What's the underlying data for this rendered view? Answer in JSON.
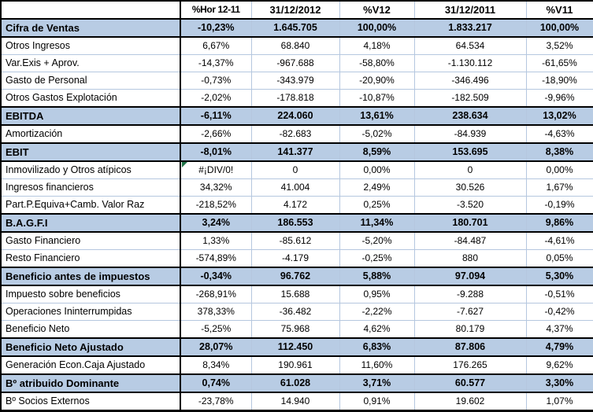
{
  "colors": {
    "highlight_row_bg": "#B8CCE4",
    "grid_line": "#B5C7DF",
    "section_border": "#000000",
    "error_indicator": "#1E7145",
    "text": "#000000"
  },
  "table": {
    "columns": [
      {
        "key": "label",
        "header": ""
      },
      {
        "key": "hor",
        "header": "%Hor 12-11"
      },
      {
        "key": "v2012",
        "header": "31/12/2012"
      },
      {
        "key": "p12",
        "header": "%V12"
      },
      {
        "key": "v2011",
        "header": "31/12/2011"
      },
      {
        "key": "p11",
        "header": "%V11"
      }
    ],
    "rows": [
      {
        "label": "Cifra de Ventas",
        "hor": "-10,23%",
        "v2012": "1.645.705",
        "p12": "100,00%",
        "v2011": "1.833.217",
        "p11": "100,00%",
        "emphasis": true
      },
      {
        "label": "Otros Ingresos",
        "hor": "6,67%",
        "v2012": "68.840",
        "p12": "4,18%",
        "v2011": "64.534",
        "p11": "3,52%"
      },
      {
        "label": "Var.Exis + Aprov.",
        "hor": "-14,37%",
        "v2012": "-967.688",
        "p12": "-58,80%",
        "v2011": "-1.130.112",
        "p11": "-61,65%"
      },
      {
        "label": "Gasto de Personal",
        "hor": "-0,73%",
        "v2012": "-343.979",
        "p12": "-20,90%",
        "v2011": "-346.496",
        "p11": "-18,90%"
      },
      {
        "label": "Otros Gastos Explotación",
        "hor": "-2,02%",
        "v2012": "-178.818",
        "p12": "-10,87%",
        "v2011": "-182.509",
        "p11": "-9,96%"
      },
      {
        "label": "EBITDA",
        "hor": "-6,11%",
        "v2012": "224.060",
        "p12": "13,61%",
        "v2011": "238.634",
        "p11": "13,02%",
        "emphasis": true
      },
      {
        "label": "Amortización",
        "hor": "-2,66%",
        "v2012": "-82.683",
        "p12": "-5,02%",
        "v2011": "-84.939",
        "p11": "-4,63%"
      },
      {
        "label": "EBIT",
        "hor": "-8,01%",
        "v2012": "141.377",
        "p12": "8,59%",
        "v2011": "153.695",
        "p11": "8,38%",
        "emphasis": true
      },
      {
        "label": "Inmovilizado y Otros atípicos",
        "hor": "#¡DIV/0!",
        "v2012": "0",
        "p12": "0,00%",
        "v2011": "0",
        "p11": "0,00%",
        "error": true
      },
      {
        "label": "Ingresos financieros",
        "hor": "34,32%",
        "v2012": "41.004",
        "p12": "2,49%",
        "v2011": "30.526",
        "p11": "1,67%"
      },
      {
        "label": "Part.P.Equiva+Camb. Valor Raz",
        "hor": "-218,52%",
        "v2012": "4.172",
        "p12": "0,25%",
        "v2011": "-3.520",
        "p11": "-0,19%"
      },
      {
        "label": "B.A.G.F.I",
        "hor": "3,24%",
        "v2012": "186.553",
        "p12": "11,34%",
        "v2011": "180.701",
        "p11": "9,86%",
        "emphasis": true
      },
      {
        "label": "Gasto Financiero",
        "hor": "1,33%",
        "v2012": "-85.612",
        "p12": "-5,20%",
        "v2011": "-84.487",
        "p11": "-4,61%"
      },
      {
        "label": "Resto Financiero",
        "hor": "-574,89%",
        "v2012": "-4.179",
        "p12": "-0,25%",
        "v2011": "880",
        "p11": "0,05%"
      },
      {
        "label": "Beneficio antes de impuestos",
        "hor": "-0,34%",
        "v2012": "96.762",
        "p12": "5,88%",
        "v2011": "97.094",
        "p11": "5,30%",
        "emphasis": true
      },
      {
        "label": "Impuesto sobre beneficios",
        "hor": "-268,91%",
        "v2012": "15.688",
        "p12": "0,95%",
        "v2011": "-9.288",
        "p11": "-0,51%"
      },
      {
        "label": "Operaciones Ininterrumpidas",
        "hor": "378,33%",
        "v2012": "-36.482",
        "p12": "-2,22%",
        "v2011": "-7.627",
        "p11": "-0,42%"
      },
      {
        "label": "Beneficio Neto",
        "hor": "-5,25%",
        "v2012": "75.968",
        "p12": "4,62%",
        "v2011": "80.179",
        "p11": "4,37%"
      },
      {
        "label": "Beneficio Neto Ajustado",
        "hor": "28,07%",
        "v2012": "112.450",
        "p12": "6,83%",
        "v2011": "87.806",
        "p11": "4,79%",
        "emphasis": true
      },
      {
        "label": "Generación Econ.Caja  Ajustado",
        "hor": "8,34%",
        "v2012": "190.961",
        "p12": "11,60%",
        "v2011": "176.265",
        "p11": "9,62%"
      },
      {
        "label": "Bº atribuido Dominante",
        "hor": "0,74%",
        "v2012": "61.028",
        "p12": "3,71%",
        "v2011": "60.577",
        "p11": "3,30%",
        "emphasis": true
      },
      {
        "label": "Bº Socios Externos",
        "hor": "-23,78%",
        "v2012": "14.940",
        "p12": "0,91%",
        "v2011": "19.602",
        "p11": "1,07%"
      }
    ]
  }
}
